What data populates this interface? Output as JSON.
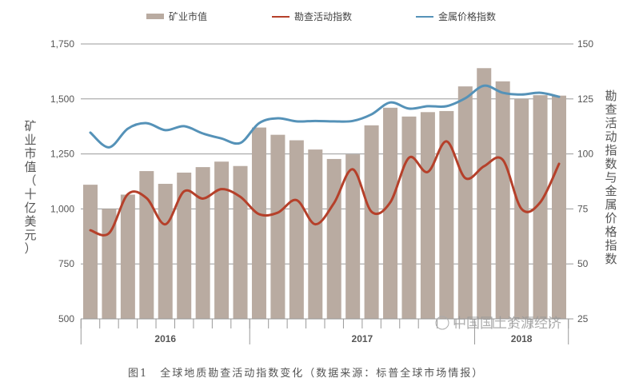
{
  "chart_data": {
    "type": "bar+line",
    "title": "",
    "legend": [
      "矿业市值",
      "勘查活动指数",
      "金属价格指数"
    ],
    "legend_placement": "top",
    "ylabel_left": "矿业市值（十亿美元）",
    "ylabel_right": "勘查活动指数与金属价格指数",
    "ylim_left": [
      500,
      1750
    ],
    "ylim_right": [
      25,
      150
    ],
    "yticks_left": [
      "500",
      "750",
      "1,000",
      "1,250",
      "1,500",
      "1,750"
    ],
    "yticks_right": [
      "25",
      "50",
      "75",
      "100",
      "125",
      "150"
    ],
    "year_groups": [
      {
        "label": "2016",
        "count": 9
      },
      {
        "label": "2017",
        "count": 12
      },
      {
        "label": "2018",
        "count": 5
      }
    ],
    "grid": true,
    "series": [
      {
        "name": "矿业市值",
        "type": "bar",
        "axis": "left",
        "color": "#b9aba1",
        "values": [
          1110,
          1000,
          1065,
          1172,
          1114,
          1165,
          1190,
          1215,
          1195,
          1370,
          1337,
          1312,
          1270,
          1227,
          1248,
          1380,
          1460,
          1420,
          1440,
          1445,
          1557,
          1640,
          1580,
          1500,
          1517,
          1515
        ]
      },
      {
        "name": "勘查活动指数",
        "type": "line",
        "axis": "right",
        "color": "#b5402a",
        "values": [
          65.3,
          64,
          81.7,
          79.9,
          68,
          83,
          79.7,
          84,
          80.5,
          72.6,
          73.3,
          79,
          68,
          77.7,
          93,
          73.7,
          78,
          98.3,
          91.8,
          105.7,
          89,
          94.4,
          97.3,
          75,
          78,
          95.5
        ]
      },
      {
        "name": "金属价格指数",
        "type": "line",
        "axis": "right",
        "color": "#5592b8",
        "values": [
          109.7,
          103,
          111.5,
          114,
          110.8,
          112.6,
          109.3,
          107,
          105,
          114,
          116.2,
          114.8,
          115,
          114.8,
          115,
          118,
          123.4,
          120.6,
          121.7,
          121.7,
          125.3,
          131,
          127.8,
          127,
          127.8,
          126
        ]
      }
    ]
  },
  "caption": "图1　全球地质勘查活动指数变化（数据来源：标普全球市场情报）",
  "watermark": "中国国土资源经济"
}
